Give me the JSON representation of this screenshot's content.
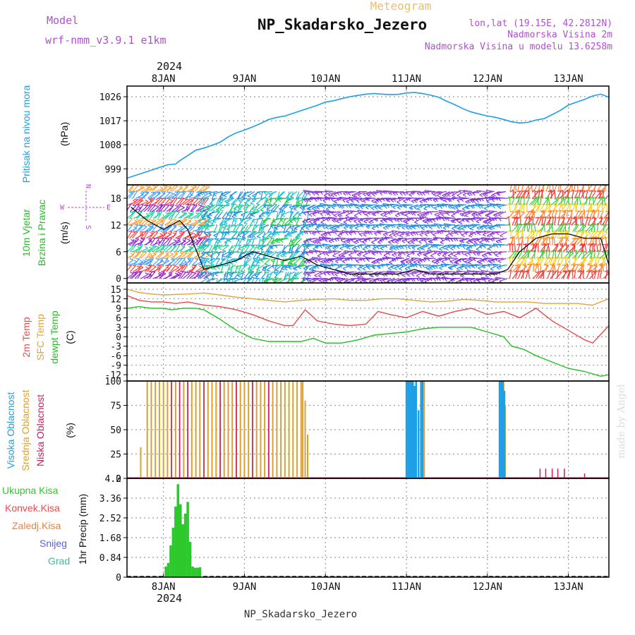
{
  "header": {
    "model_label": "Model",
    "model_name": "wrf-nmm_v3.9.1 e1km",
    "meteogram_label": "Meteogram",
    "station_title": "NP_Skadarsko_Jezero",
    "lonlat": "lon,lat (19.15E, 42.2812N)",
    "elevation": "Nadmorska Visina 2m",
    "model_elevation": "Nadmorska Visina u modelu 13.6258m",
    "footer_station": "NP_Skadarsko_Jezero",
    "watermark": "made by Angel",
    "year": "2024"
  },
  "colors": {
    "pressure": "#1ea0e6",
    "temp2m": "#e84b4b",
    "sfc_temp": "#e0a43a",
    "dewpoint": "#22c022",
    "precip": "#2cc82c",
    "high_cloud": "#1ea0e6",
    "mid_cloud": "#dca032",
    "low_cloud": "#c81e64",
    "purple_text": "#b050d0"
  },
  "time_axis": {
    "start_day": 7.55,
    "end_day": 13.5,
    "day_labels": [
      "8JAN",
      "9JAN",
      "10JAN",
      "11JAN",
      "12JAN",
      "13JAN"
    ],
    "day_values": [
      8,
      9,
      10,
      11,
      12,
      13
    ]
  },
  "chart_data": [
    {
      "type": "line",
      "id": "pressure",
      "ylabel_lines": [
        "Pritisak na nivou mora",
        "(hPa)"
      ],
      "ylim": [
        993,
        1030
      ],
      "yticks": [
        999,
        1008,
        1017,
        1026
      ],
      "series": [
        {
          "x": [
            7.55,
            7.65,
            7.75,
            7.85,
            7.95,
            8.05,
            8.15,
            8.2,
            8.3,
            8.4,
            8.5,
            8.6,
            8.7,
            8.8,
            8.9,
            9.0,
            9.1,
            9.2,
            9.3,
            9.4,
            9.5,
            9.6,
            9.7,
            9.8,
            9.9,
            10.0,
            10.1,
            10.2,
            10.3,
            10.4,
            10.5,
            10.6,
            10.7,
            10.8,
            10.9,
            11.0,
            11.1,
            11.2,
            11.3,
            11.4,
            11.5,
            11.6,
            11.7,
            11.8,
            11.9,
            12.0,
            12.1,
            12.2,
            12.3,
            12.4,
            12.5,
            12.6,
            12.7,
            12.8,
            12.9,
            13.0,
            13.1,
            13.2,
            13.3,
            13.4,
            13.5
          ],
          "values": [
            995.5,
            996.5,
            997.5,
            998.5,
            999.5,
            1000.5,
            1000.8,
            1002.0,
            1004.0,
            1006.0,
            1006.8,
            1007.8,
            1009.0,
            1011.0,
            1012.5,
            1013.5,
            1014.7,
            1016.0,
            1017.5,
            1018.3,
            1018.8,
            1019.8,
            1020.8,
            1021.8,
            1022.8,
            1024.0,
            1024.5,
            1025.3,
            1026.0,
            1026.5,
            1027.0,
            1027.2,
            1027.0,
            1026.8,
            1026.9,
            1027.4,
            1027.6,
            1027.2,
            1026.6,
            1025.8,
            1024.3,
            1023.0,
            1021.5,
            1020.3,
            1019.5,
            1018.8,
            1018.3,
            1017.5,
            1016.6,
            1016.2,
            1016.4,
            1017.3,
            1017.8,
            1019.3,
            1020.9,
            1022.9,
            1024.0,
            1025.0,
            1026.3,
            1027.0,
            1025.8
          ]
        }
      ]
    },
    {
      "type": "barbs",
      "id": "wind",
      "ylabel_lines": [
        "10m Vjetar",
        "Brzina i Pravac",
        "(m/s)"
      ],
      "ylim": [
        -1,
        21
      ],
      "yticks": [
        0,
        6,
        12,
        18
      ],
      "compass_n": "N",
      "compass_s": "S",
      "compass_e": "E",
      "compass_w": "W",
      "speed": {
        "x": [
          7.6,
          7.8,
          8.0,
          8.2,
          8.3,
          8.5,
          8.7,
          8.9,
          9.1,
          9.3,
          9.5,
          9.7,
          9.9,
          10.1,
          10.3,
          10.5,
          10.7,
          10.9,
          11.1,
          11.3,
          11.5,
          11.7,
          11.9,
          12.1,
          12.25,
          12.4,
          12.6,
          12.8,
          13.0,
          13.2,
          13.4,
          13.5
        ],
        "values": [
          16,
          13,
          11,
          13,
          11,
          2,
          3,
          4,
          6,
          5,
          4,
          5,
          3,
          2,
          1,
          1,
          1,
          1,
          2,
          1,
          1,
          1,
          1,
          1,
          2,
          6,
          9,
          10,
          10,
          9,
          9,
          3
        ]
      }
    },
    {
      "type": "line",
      "id": "temperature",
      "ylabel_lines": [
        "2m Temp",
        "SFC Temp",
        "dewpt Temp",
        "(C)"
      ],
      "ylim": [
        -14,
        17
      ],
      "yticks": [
        -12,
        -9,
        -6,
        -3,
        0,
        3,
        6,
        9,
        12,
        15
      ],
      "series": [
        {
          "name": "2m Temp",
          "x": [
            7.55,
            7.7,
            7.85,
            8.0,
            8.15,
            8.3,
            8.5,
            8.7,
            8.9,
            9.1,
            9.3,
            9.5,
            9.6,
            9.75,
            9.9,
            10.1,
            10.3,
            10.5,
            10.65,
            10.8,
            11.0,
            11.2,
            11.4,
            11.6,
            11.8,
            12.0,
            12.2,
            12.4,
            12.6,
            12.8,
            13.0,
            13.2,
            13.3,
            13.5
          ],
          "values": [
            13,
            11.5,
            11,
            11,
            10.5,
            11,
            10,
            9.5,
            8.5,
            7,
            5,
            3.5,
            3.5,
            8.5,
            5,
            4,
            3.5,
            4,
            8,
            7,
            6,
            8,
            6.5,
            8,
            9,
            7,
            8,
            6,
            9,
            5,
            2,
            -1,
            -2,
            3.5
          ]
        },
        {
          "name": "SFC Temp",
          "x": [
            7.55,
            7.7,
            7.85,
            8.0,
            8.3,
            8.5,
            8.7,
            8.9,
            9.1,
            9.3,
            9.5,
            9.7,
            9.9,
            10.1,
            10.3,
            10.5,
            10.7,
            10.9,
            11.1,
            11.3,
            11.5,
            11.7,
            11.9,
            12.1,
            12.3,
            12.5,
            12.7,
            12.9,
            13.1,
            13.3,
            13.5
          ],
          "values": [
            15,
            14,
            13.5,
            13.2,
            13.5,
            13.8,
            13.2,
            12.5,
            12,
            11.5,
            11,
            11.5,
            11.8,
            12,
            11.5,
            11.5,
            12,
            12,
            11.5,
            11,
            11.2,
            11.8,
            11.5,
            11,
            11,
            11,
            10.5,
            10.5,
            10.5,
            10,
            12
          ]
        },
        {
          "name": "dewpt Temp",
          "x": [
            7.55,
            7.7,
            7.85,
            8.0,
            8.1,
            8.25,
            8.4,
            8.5,
            8.7,
            8.9,
            9.1,
            9.3,
            9.5,
            9.7,
            9.85,
            10.0,
            10.2,
            10.4,
            10.6,
            10.8,
            11.0,
            11.2,
            11.4,
            11.6,
            11.8,
            12.0,
            12.2,
            12.3,
            12.45,
            12.6,
            12.8,
            13.0,
            13.2,
            13.4,
            13.5
          ],
          "values": [
            9,
            9.5,
            9,
            9,
            8.5,
            9,
            9,
            8.5,
            5.5,
            2,
            -0.5,
            -1.5,
            -1.5,
            -1.5,
            -0.5,
            -2,
            -2,
            -1,
            0.5,
            1,
            1.5,
            2.5,
            3,
            3,
            3,
            1.5,
            0,
            -3,
            -4,
            -6,
            -8,
            -10,
            -11,
            -12.5,
            -12
          ]
        }
      ]
    },
    {
      "type": "bar",
      "id": "clouds",
      "ylabel_lines": [
        "Visoka Oblacnost",
        "Srednja Oblacnost",
        "Niska Oblacnost",
        "(%)"
      ],
      "ylim": [
        0,
        100
      ],
      "yticks": [
        0,
        25,
        50,
        75,
        100
      ],
      "high_cloud": {
        "x": [
          11.0,
          11.02,
          11.04,
          11.06,
          11.08,
          11.1,
          11.12,
          11.15,
          11.18,
          11.2,
          12.15,
          12.17,
          12.19,
          12.21
        ],
        "values": [
          100,
          100,
          100,
          100,
          100,
          95,
          100,
          70,
          100,
          100,
          100,
          100,
          100,
          90
        ]
      },
      "mid_cloud": {
        "x": [
          7.72,
          7.8,
          7.85,
          7.9,
          7.95,
          8.0,
          8.05,
          8.1,
          8.15,
          8.2,
          8.25,
          8.3,
          8.35,
          8.4,
          8.45,
          8.5,
          8.55,
          8.6,
          8.65,
          8.7,
          8.75,
          8.8,
          8.85,
          8.9,
          8.95,
          9.0,
          9.05,
          9.1,
          9.15,
          9.2,
          9.25,
          9.3,
          9.35,
          9.4,
          9.45,
          9.5,
          9.55,
          9.6,
          9.65,
          9.7,
          9.72,
          9.75,
          9.78,
          11.12,
          11.22,
          12.18,
          12.2,
          12.22
        ],
        "values": [
          32,
          100,
          100,
          100,
          100,
          100,
          100,
          100,
          100,
          100,
          100,
          100,
          100,
          100,
          100,
          100,
          100,
          100,
          100,
          100,
          100,
          100,
          100,
          100,
          100,
          100,
          100,
          100,
          100,
          100,
          100,
          100,
          100,
          100,
          100,
          100,
          100,
          100,
          100,
          100,
          100,
          80,
          45,
          25,
          100,
          100,
          100,
          75
        ]
      },
      "low_cloud": {
        "x": [
          8.1,
          8.2,
          8.3,
          8.5,
          8.7,
          8.9,
          9.1,
          9.3,
          12.65,
          12.72,
          12.8,
          12.87,
          12.95,
          13.2
        ],
        "values": [
          100,
          100,
          100,
          100,
          100,
          100,
          100,
          100,
          10,
          10,
          10,
          10,
          10,
          5
        ]
      }
    },
    {
      "type": "bar",
      "id": "precip",
      "ylabel_lines": [
        "1hr Precip (mm)"
      ],
      "legend": [
        "Ukupna Kisa",
        "Konvek.Kisa",
        "Zaledj.Kisa",
        "Snijeg",
        "Grad"
      ],
      "legend_colors": [
        "#2cc82c",
        "#e84b4b",
        "#f08040",
        "#6060e0",
        "#30c0a0"
      ],
      "ylim": [
        0,
        4.2
      ],
      "yticks": [
        0,
        0.84,
        1.68,
        2.52,
        3.36,
        4.2
      ],
      "x": [
        8.03,
        8.06,
        8.09,
        8.12,
        8.15,
        8.18,
        8.21,
        8.24,
        8.27,
        8.3,
        8.33,
        8.36,
        8.39,
        8.42,
        8.45
      ],
      "values": [
        0.45,
        0.6,
        1.35,
        2.1,
        3.0,
        3.95,
        3.1,
        2.25,
        2.7,
        3.2,
        1.5,
        0.45,
        0.4,
        0.4,
        0.42
      ]
    }
  ]
}
